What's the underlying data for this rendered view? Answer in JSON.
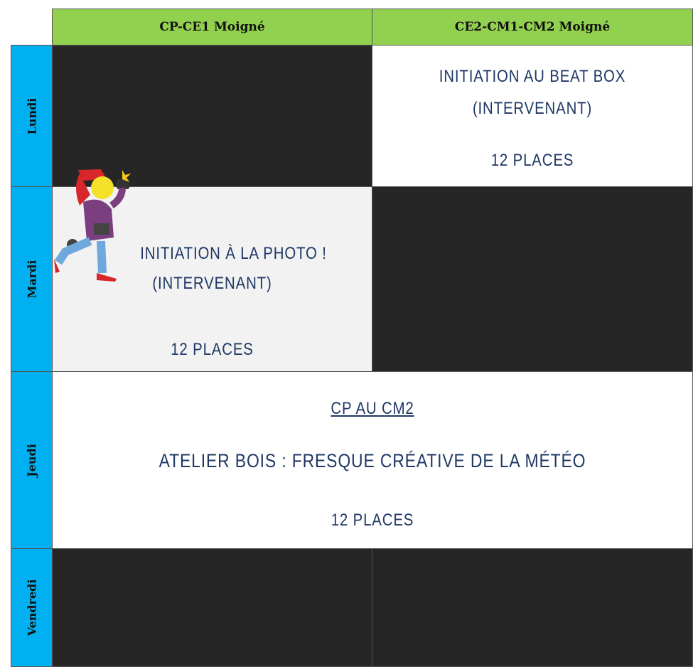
{
  "table": {
    "columns": [
      "CP-CE1 Moigné",
      "CE2-CM1-CM2 Moigné"
    ],
    "rows": [
      {
        "day": "Lundi",
        "activity": {
          "lines": [
            "INITIATION AU BEAT BOX",
            "(INTERVENANT)"
          ],
          "places": "12 PLACES"
        }
      },
      {
        "day": "Mardi",
        "activity": {
          "lines": [
            "INITIATION À LA PHOTO !",
            "(INTERVENANT)"
          ],
          "places": "12 PLACES"
        }
      },
      {
        "day": "Jeudi",
        "activity": {
          "level": "CP AU CM2",
          "lines": [
            "ATELIER BOIS : FRESQUE CRÉATIVE DE LA MÉTÉO"
          ],
          "places": "12 PLACES"
        }
      },
      {
        "day": "Vendredi"
      }
    ]
  }
}
